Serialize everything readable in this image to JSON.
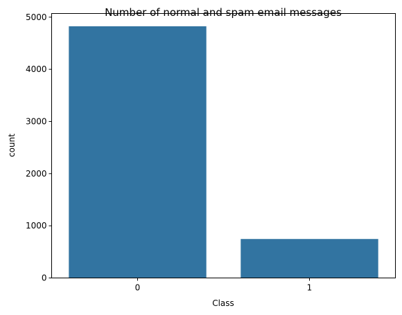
{
  "chart_data": {
    "type": "bar",
    "title": "Number of normal and spam email messages",
    "xlabel": "Class",
    "ylabel": "count",
    "categories": [
      "0",
      "1"
    ],
    "values": [
      4825,
      747
    ],
    "ylim": [
      0,
      5070
    ],
    "yticks": [
      0,
      1000,
      2000,
      3000,
      4000,
      5000
    ],
    "bar_color": "#3274a1",
    "grid": false,
    "legend": "none"
  }
}
